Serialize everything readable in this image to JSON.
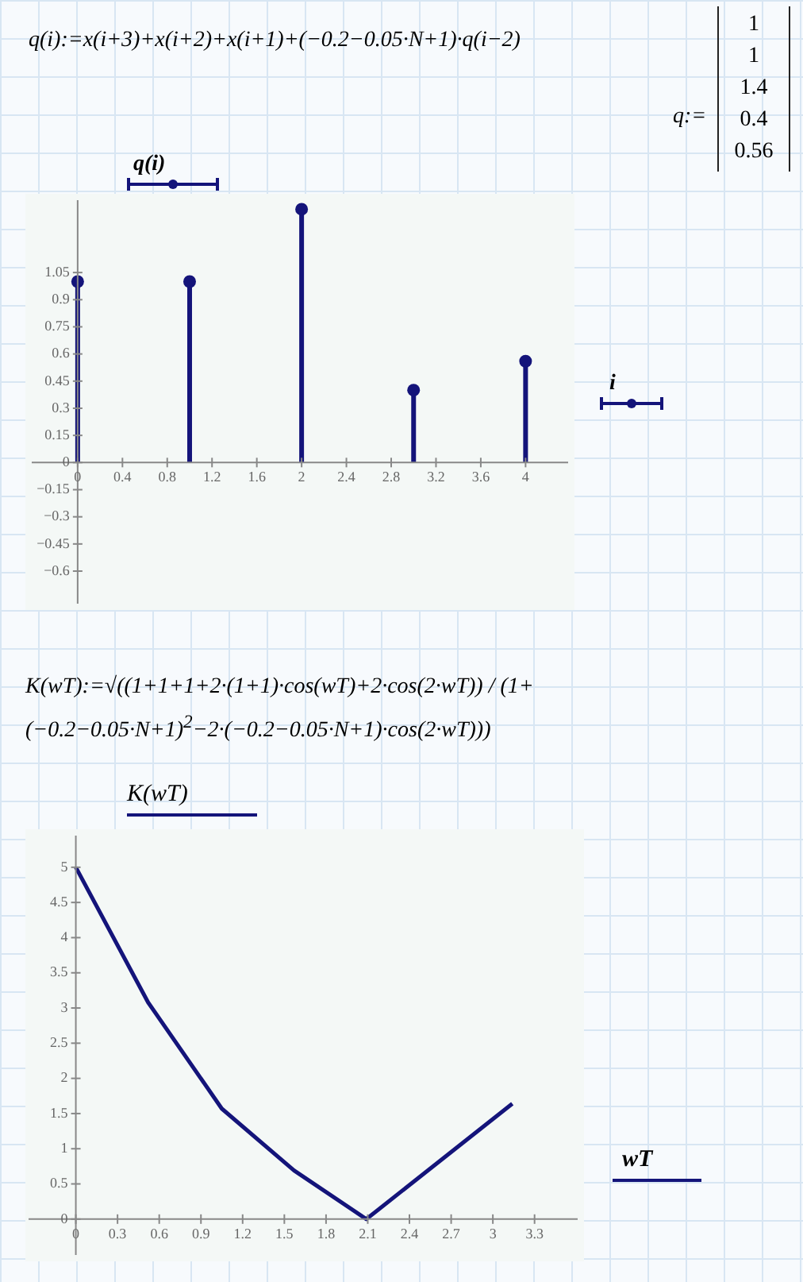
{
  "chart_data": [
    {
      "type": "lollipop",
      "title": "q(i):=x(i+3)+x(i+2)+x(i+1)+(−0.2−0.05·N+1)·q(i−2)",
      "annotations": [
        "q:=",
        "1",
        "1",
        "1.4",
        "0.4",
        "0.56"
      ],
      "xlabel": "i",
      "ylabel": "q(i)",
      "x": [
        0,
        1,
        2,
        3,
        4
      ],
      "values": [
        1,
        1,
        1.4,
        0.4,
        0.56
      ],
      "color": "#14147a",
      "marker": "circle",
      "xlim": [
        -0.41,
        4.38
      ],
      "xticks": [
        0,
        0.4,
        0.8,
        1.2,
        1.6,
        2,
        2.4,
        2.8,
        3.2,
        3.6,
        4
      ],
      "ylim": [
        -0.78,
        1.45
      ],
      "yticks": [
        -0.6,
        -0.45,
        -0.3,
        -0.15,
        0,
        0.15,
        0.3,
        0.45,
        0.6,
        0.75,
        0.9,
        1.05
      ]
    },
    {
      "type": "line",
      "title": "K(wT):=√((1+1+1+2·(1+1)·cos(wT)+2·cos(2·wT)) / (1+(−0.2−0.05·N+1)$^{2}$−2·(−0.2−0.05·N+1)·cos(2·wT)))",
      "xlabel": "wT",
      "ylabel": "K(wT)",
      "x": [
        0,
        0.52,
        1.05,
        1.57,
        2.09,
        3.14
      ],
      "values": [
        5,
        3.08,
        1.57,
        0.69,
        0,
        1.64
      ],
      "color": "#14147a",
      "marker": "none",
      "line_style": "solid",
      "xlim": [
        -0.34,
        3.61
      ],
      "xticks": [
        0,
        0.3,
        0.6,
        0.9,
        1.2,
        1.5,
        1.8,
        2.1,
        2.4,
        2.7,
        3,
        3.3
      ],
      "ylim": [
        -0.51,
        5.45
      ],
      "yticks": [
        0,
        0.5,
        1,
        1.5,
        2,
        2.5,
        3,
        3.5,
        4,
        4.5,
        5
      ]
    }
  ]
}
